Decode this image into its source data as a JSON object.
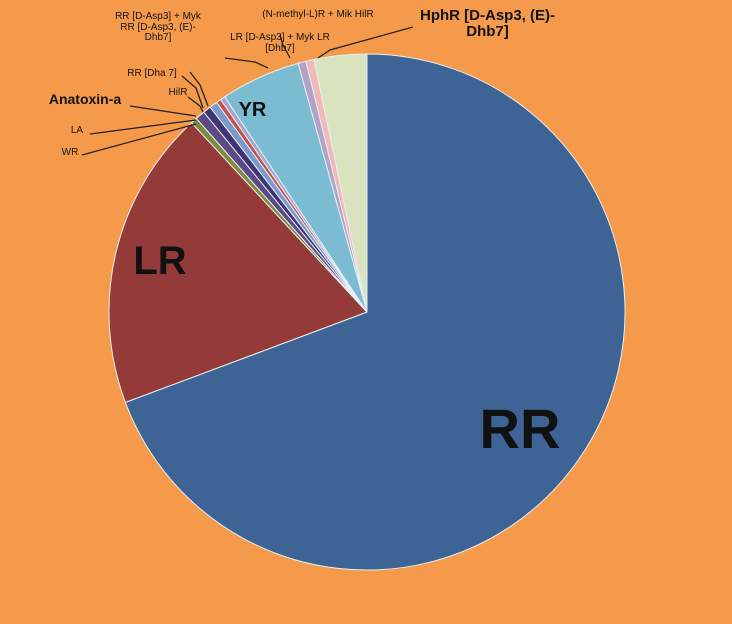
{
  "chart_data": {
    "type": "pie",
    "categories": [
      "RR",
      "LR",
      "WR",
      "LA",
      "Anatoxin-a",
      "HilR",
      "RR [Dha 7]",
      "RR [D-Asp3] + Myk RR [D-Asp3, (E)-Dhb7]",
      "YR",
      "LR [D-Asp3] + Myk LR [Dhb7]",
      "(N-methyl-L)R + Mik HilR",
      "HphR [D-Asp3, (E)-Dhb7]"
    ],
    "values": [
      69.3,
      18.8,
      0.4,
      0.6,
      0.5,
      0.5,
      0.3,
      0.3,
      5.0,
      0.5,
      0.5,
      3.3
    ],
    "colors": [
      "#3d6494",
      "#943b3a",
      "#7a8c3c",
      "#5b4a86",
      "#3f3574",
      "#7a9ac9",
      "#c0504d",
      "#a5a5c9",
      "#7bbcd3",
      "#b3a2c7",
      "#f2b8b7",
      "#d7e4bd"
    ]
  }
}
